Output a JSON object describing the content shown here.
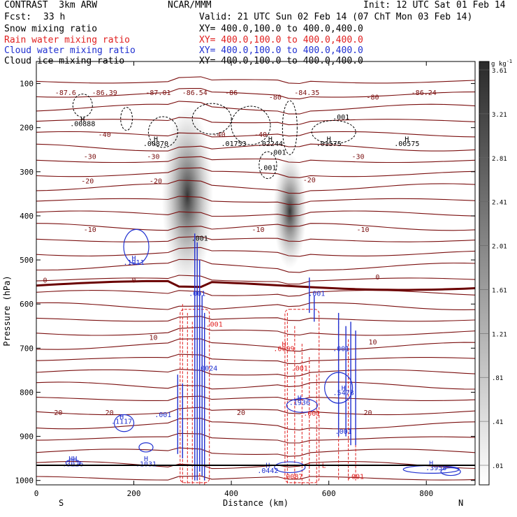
{
  "header": {
    "model": "CONTRAST  3km ARW",
    "org": "NCAR/MMM",
    "init": "Init: 12 UTC Sat 01 Feb 14",
    "fcst_label": "Fcst:",
    "fcst_value": "33 h",
    "valid": "Valid: 21 UTC Sun 02 Feb 14 (07 ChT Mon 03 Feb 14)"
  },
  "fields": [
    {
      "name": "Snow mixing ratio",
      "xy": "XY= 400.0,100.0 to 400.0,400.0",
      "color": "#000000"
    },
    {
      "name": "Rain water mixing ratio",
      "xy": "XY= 400.0,100.0 to 400.0,400.0",
      "color": "#e02020"
    },
    {
      "name": "Cloud water mixing ratio",
      "xy": "XY= 400.0,100.0 to 400.0,400.0",
      "color": "#2030d0"
    },
    {
      "name": "Cloud ice mixing ratio",
      "xy": "XY= 400.0,100.0 to 400.0,400.0",
      "color": "#000000"
    }
  ],
  "chart_data": {
    "type": "heatmap",
    "xlabel": "Distance (km)",
    "ylabel": "Pressure (hPa)",
    "xlim": [
      0,
      900
    ],
    "ylim": [
      1010,
      50
    ],
    "x_ticks": [
      0,
      200,
      400,
      600,
      800
    ],
    "y_ticks": [
      100,
      200,
      300,
      400,
      500,
      600,
      700,
      800,
      900,
      1000
    ],
    "x_end_labels": {
      "left": "S",
      "right": "N"
    },
    "colorbar": {
      "unit": "g kg",
      "unit_exp": "-1",
      "levels": [
        ".01",
        ".41",
        ".81",
        "1.21",
        "1.61",
        "2.01",
        "2.41",
        "2.81",
        "3.21",
        "3.61"
      ],
      "range": [
        0.01,
        4.0
      ]
    },
    "temperature_contours": {
      "color": "#7a0e0e",
      "labels": [
        {
          "text": "-87.6",
          "x": 60,
          "p": 120
        },
        {
          "text": "-86.39",
          "x": 140,
          "p": 120
        },
        {
          "text": "-87.01",
          "x": 250,
          "p": 120
        },
        {
          "text": "-86.54",
          "x": 325,
          "p": 120
        },
        {
          "text": "-86",
          "x": 400,
          "p": 120
        },
        {
          "text": "-80",
          "x": 490,
          "p": 130
        },
        {
          "text": "-84.35",
          "x": 555,
          "p": 120
        },
        {
          "text": "-80",
          "x": 690,
          "p": 130
        },
        {
          "text": "-86.24",
          "x": 795,
          "p": 120
        },
        {
          "text": "-40",
          "x": 140,
          "p": 215
        },
        {
          "text": "-40",
          "x": 375,
          "p": 215
        },
        {
          "text": "-40",
          "x": 460,
          "p": 215
        },
        {
          "text": "-30",
          "x": 110,
          "p": 265
        },
        {
          "text": "-30",
          "x": 240,
          "p": 265
        },
        {
          "text": "-30",
          "x": 660,
          "p": 265
        },
        {
          "text": "-20",
          "x": 105,
          "p": 320
        },
        {
          "text": "-20",
          "x": 245,
          "p": 320
        },
        {
          "text": "-20",
          "x": 560,
          "p": 318
        },
        {
          "text": "-10",
          "x": 110,
          "p": 430
        },
        {
          "text": "-10",
          "x": 455,
          "p": 430
        },
        {
          "text": "-10",
          "x": 670,
          "p": 430
        },
        {
          "text": "0",
          "x": 18,
          "p": 545
        },
        {
          "text": "0",
          "x": 200,
          "p": 545
        },
        {
          "text": "0",
          "x": 700,
          "p": 538
        },
        {
          "text": "10",
          "x": 240,
          "p": 675
        },
        {
          "text": "10",
          "x": 690,
          "p": 685
        },
        {
          "text": "20",
          "x": 45,
          "p": 845
        },
        {
          "text": "20",
          "x": 150,
          "p": 845
        },
        {
          "text": "20",
          "x": 420,
          "p": 845
        },
        {
          "text": "20",
          "x": 680,
          "p": 845
        }
      ]
    },
    "maxima_labels": [
      {
        "text": "H",
        "x": 95,
        "p": 180,
        "color": "#000000"
      },
      {
        "text": ".00888",
        "x": 95,
        "p": 190,
        "color": "#000000"
      },
      {
        "text": "H",
        "x": 245,
        "p": 225,
        "color": "#000000"
      },
      {
        "text": ".00870",
        "x": 245,
        "p": 235,
        "color": "#000000"
      },
      {
        "text": ".01753",
        "x": 405,
        "p": 235,
        "color": "#000000"
      },
      {
        "text": "H",
        "x": 480,
        "p": 225,
        "color": "#000000"
      },
      {
        "text": ".02244",
        "x": 480,
        "p": 235,
        "color": "#000000"
      },
      {
        "text": ".001",
        "x": 495,
        "p": 255,
        "color": "#000000"
      },
      {
        "text": ".001",
        "x": 475,
        "p": 290,
        "color": "#000000"
      },
      {
        "text": ".001",
        "x": 625,
        "p": 175,
        "color": "#000000"
      },
      {
        "text": "H",
        "x": 600,
        "p": 225,
        "color": "#000000"
      },
      {
        "text": ".01575",
        "x": 600,
        "p": 235,
        "color": "#000000"
      },
      {
        "text": "H",
        "x": 760,
        "p": 225,
        "color": "#000000"
      },
      {
        "text": ".00575",
        "x": 760,
        "p": 235,
        "color": "#000000"
      },
      {
        "text": ".001",
        "x": 335,
        "p": 450,
        "color": "#000000"
      },
      {
        "text": "H",
        "x": 200,
        "p": 495,
        "color": "#2030d0"
      },
      {
        "text": ".1911",
        "x": 200,
        "p": 505,
        "color": "#2030d0"
      },
      {
        "text": ".001",
        "x": 330,
        "p": 575,
        "color": "#2030d0"
      },
      {
        "text": ".001",
        "x": 575,
        "p": 575,
        "color": "#2030d0"
      },
      {
        "text": ".001",
        "x": 365,
        "p": 645,
        "color": "#e02020"
      },
      {
        "text": "H",
        "x": 508,
        "p": 690,
        "color": "#e02020"
      },
      {
        "text": ".0099",
        "x": 508,
        "p": 700,
        "color": "#e02020"
      },
      {
        "text": ".001",
        "x": 540,
        "p": 745,
        "color": "#e02020"
      },
      {
        "text": ".001",
        "x": 625,
        "p": 700,
        "color": "#2030d0"
      },
      {
        "text": ".0024",
        "x": 350,
        "p": 745,
        "color": "#2030d0"
      },
      {
        "text": "H",
        "x": 630,
        "p": 790,
        "color": "#2030d0"
      },
      {
        "text": ".5478",
        "x": 630,
        "p": 800,
        "color": "#2030d0"
      },
      {
        "text": "H",
        "x": 540,
        "p": 812,
        "color": "#2030d0"
      },
      {
        "text": ".1936",
        "x": 540,
        "p": 822,
        "color": "#2030d0"
      },
      {
        "text": ".001",
        "x": 565,
        "p": 847,
        "color": "#e02020"
      },
      {
        "text": "H",
        "x": 175,
        "p": 855,
        "color": "#2030d0"
      },
      {
        "text": ".1117",
        "x": 175,
        "p": 865,
        "color": "#2030d0"
      },
      {
        "text": ".001",
        "x": 260,
        "p": 850,
        "color": "#2030d0"
      },
      {
        "text": ".001",
        "x": 630,
        "p": 888,
        "color": "#2030d0"
      },
      {
        "text": "HH",
        "x": 75,
        "p": 950,
        "color": "#2030d0"
      },
      {
        "text": ".3026",
        "x": 75,
        "p": 962,
        "color": "#2030d0"
      },
      {
        "text": "H",
        "x": 225,
        "p": 950,
        "color": "#2030d0"
      },
      {
        "text": ".1031",
        "x": 225,
        "p": 962,
        "color": "#2030d0"
      },
      {
        "text": "H",
        "x": 475,
        "p": 965,
        "color": "#2030d0"
      },
      {
        "text": ".0442",
        "x": 475,
        "p": 977,
        "color": "#2030d0"
      },
      {
        "text": "L",
        "x": 590,
        "p": 965,
        "color": "#e02020"
      },
      {
        "text": ".0087",
        "x": 525,
        "p": 990,
        "color": "#e02020"
      },
      {
        "text": ".001",
        "x": 655,
        "p": 990,
        "color": "#e02020"
      },
      {
        "text": "H",
        "x": 810,
        "p": 960,
        "color": "#2030d0"
      },
      {
        "text": ".3958",
        "x": 820,
        "p": 970,
        "color": "#2030d0"
      }
    ],
    "snow_plumes": [
      {
        "x": 310,
        "p_top": 150,
        "p_bot": 560,
        "peak": 3.8
      },
      {
        "x": 520,
        "p_top": 260,
        "p_bot": 520,
        "peak": 1.6
      }
    ]
  }
}
